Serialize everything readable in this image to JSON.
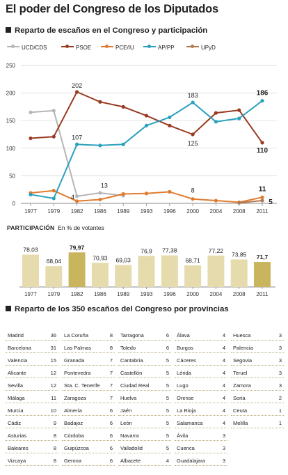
{
  "title": "El poder del Congreso de los Diputados",
  "section1_title": "Reparto de escaños en el Congreso y participación",
  "participation_label": "PARTICIPACIÓN",
  "participation_sub": "En % de votantes",
  "section2_title": "Reparto de los 350 escaños del Congreso por provincias",
  "chart_data": [
    {
      "type": "line",
      "x": [
        "1977",
        "1979",
        "1982",
        "1986",
        "1989",
        "1993",
        "1996",
        "2000",
        "2004",
        "2008",
        "2011"
      ],
      "ylim": [
        0,
        250
      ],
      "yticks": [
        0,
        50,
        100,
        150,
        200,
        250
      ],
      "grid": true,
      "legend": "top",
      "series": [
        {
          "name": "UCD/CDS",
          "color": "#b5b5b5",
          "values": [
            165,
            168,
            13,
            19,
            14,
            null,
            null,
            null,
            null,
            null,
            null
          ]
        },
        {
          "name": "PSOE",
          "color": "#9a3a22",
          "values": [
            118,
            121,
            202,
            184,
            175,
            159,
            141,
            125,
            164,
            169,
            110
          ]
        },
        {
          "name": "PCE/IU",
          "color": "#e07b2e",
          "values": [
            19,
            23,
            4,
            7,
            17,
            18,
            21,
            8,
            5,
            2,
            11
          ]
        },
        {
          "name": "AP/PP",
          "color": "#2aa0be",
          "values": [
            16,
            9,
            107,
            105,
            107,
            141,
            156,
            183,
            148,
            154,
            186
          ]
        },
        {
          "name": "UPyD",
          "color": "#b07a50",
          "values": [
            null,
            null,
            null,
            null,
            null,
            null,
            null,
            null,
            null,
            1,
            5
          ]
        }
      ],
      "annotations": [
        {
          "x": "1982",
          "value": "202"
        },
        {
          "x": "1982",
          "value": "107"
        },
        {
          "x": "1982",
          "value": "4"
        },
        {
          "x": "1986",
          "value": "13"
        },
        {
          "x": "2000",
          "value": "183"
        },
        {
          "x": "2000",
          "value": "125"
        },
        {
          "x": "2000",
          "value": "8"
        },
        {
          "x": "2011",
          "value": "186"
        },
        {
          "x": "2011",
          "value": "110"
        },
        {
          "x": "2011",
          "value": "11"
        },
        {
          "x": "2011",
          "value": "5"
        }
      ]
    },
    {
      "type": "bar",
      "categories": [
        "1977",
        "1979",
        "1982",
        "1986",
        "1989",
        "1993",
        "1996",
        "2000",
        "2004",
        "2008",
        "2011"
      ],
      "values": [
        78.03,
        68.04,
        79.97,
        70.93,
        69.03,
        76.9,
        77.38,
        68.71,
        77.22,
        73.85,
        71.7
      ],
      "labels": [
        "78,03",
        "68,04",
        "79,97",
        "70,93",
        "69,03",
        "76,9",
        "77,38",
        "68,71",
        "77,22",
        "73,85",
        "71,7"
      ],
      "ylim": [
        50,
        85
      ],
      "colors": {
        "default": "#e6dbad",
        "highlight": "#c9b55d"
      },
      "highlighted": [
        "1982",
        "2011"
      ]
    },
    {
      "type": "table",
      "columns": [
        [
          {
            "province": "Madrid",
            "seats": 36
          },
          {
            "province": "Barcelona",
            "seats": 31
          },
          {
            "province": "Valencia",
            "seats": 15
          },
          {
            "province": "Alicante",
            "seats": 12
          },
          {
            "province": "Sevilla",
            "seats": 12
          },
          {
            "province": "Málaga",
            "seats": 11
          },
          {
            "province": "Murcia",
            "seats": 10
          },
          {
            "province": "Cádiz",
            "seats": 9
          },
          {
            "province": "Asturias",
            "seats": 8
          },
          {
            "province": "Baleares",
            "seats": 8
          },
          {
            "province": "Vizcaya",
            "seats": 8
          }
        ],
        [
          {
            "province": "La Coruña",
            "seats": 8
          },
          {
            "province": "Las Palmas",
            "seats": 8
          },
          {
            "province": "Granada",
            "seats": 7
          },
          {
            "province": "Pontevedra",
            "seats": 7
          },
          {
            "province": "Sta. C. Tenerife",
            "seats": 7
          },
          {
            "province": "Zaragoza",
            "seats": 7
          },
          {
            "province": "Almería",
            "seats": 6
          },
          {
            "province": "Badajoz",
            "seats": 6
          },
          {
            "province": "Córdoba",
            "seats": 6
          },
          {
            "province": "Guipúzcoa",
            "seats": 6
          },
          {
            "province": "Gerona",
            "seats": 6
          }
        ],
        [
          {
            "province": "Tarragona",
            "seats": 6
          },
          {
            "province": "Toledo",
            "seats": 6
          },
          {
            "province": "Cantabria",
            "seats": 5
          },
          {
            "province": "Castellón",
            "seats": 5
          },
          {
            "province": "Ciudad Real",
            "seats": 5
          },
          {
            "province": "Huelva",
            "seats": 5
          },
          {
            "province": "Jaén",
            "seats": 5
          },
          {
            "province": "León",
            "seats": 5
          },
          {
            "province": "Navarra",
            "seats": 5
          },
          {
            "province": "Valladolid",
            "seats": 5
          },
          {
            "province": "Albacete",
            "seats": 4
          }
        ],
        [
          {
            "province": "Álava",
            "seats": 4
          },
          {
            "province": "Burgos",
            "seats": 4
          },
          {
            "province": "Cáceres",
            "seats": 4
          },
          {
            "province": "Lérida",
            "seats": 4
          },
          {
            "province": "Lugo",
            "seats": 4
          },
          {
            "province": "Orense",
            "seats": 4
          },
          {
            "province": "La Rioja",
            "seats": 4
          },
          {
            "province": "Salamanca",
            "seats": 4
          },
          {
            "province": "Ávila",
            "seats": 3
          },
          {
            "province": "Cuenca",
            "seats": 3
          },
          {
            "province": "Guadalajara",
            "seats": 3
          }
        ],
        [
          {
            "province": "Huesca",
            "seats": 3
          },
          {
            "province": "Palencia",
            "seats": 3
          },
          {
            "province": "Segovia",
            "seats": 3
          },
          {
            "province": "Teruel",
            "seats": 3
          },
          {
            "province": "Zamora",
            "seats": 3
          },
          {
            "province": "Soria",
            "seats": 2
          },
          {
            "province": "Ceuta",
            "seats": 1
          },
          {
            "province": "Melilla",
            "seats": 1
          }
        ]
      ]
    }
  ]
}
